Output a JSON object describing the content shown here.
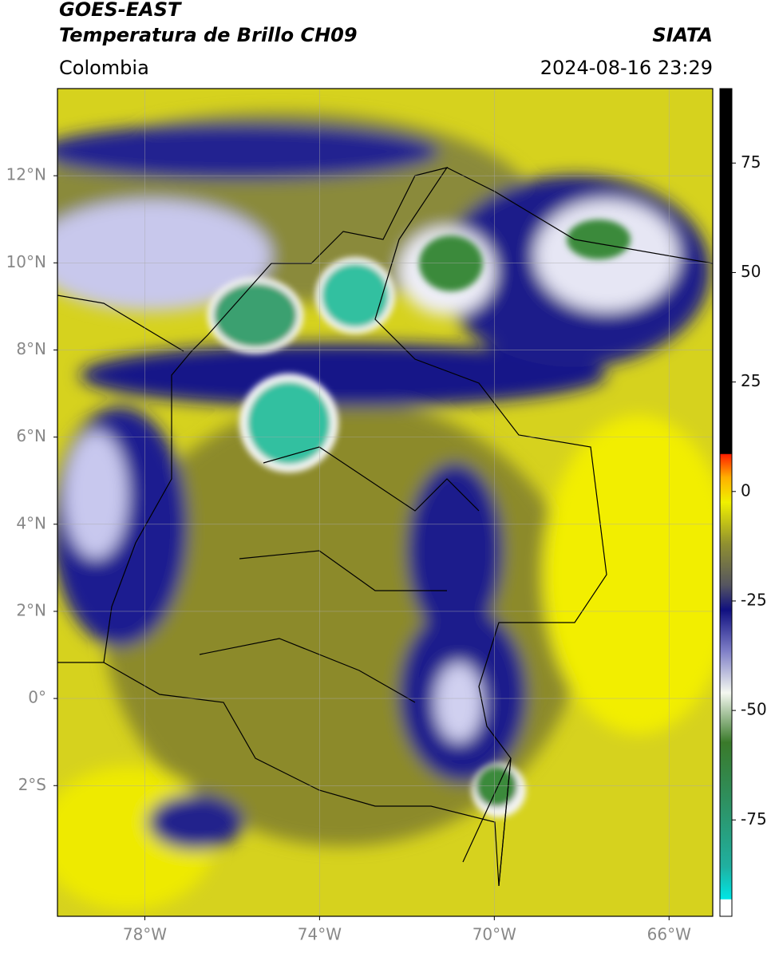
{
  "header": {
    "title": "GOES-EAST",
    "subtitle": "Temperatura de Brillo CH09",
    "source": "SIATA",
    "region": "Colombia",
    "datetime": "2024-08-16 23:29"
  },
  "map": {
    "lon_range": [
      -80,
      -65
    ],
    "lat_range": [
      -5,
      14
    ],
    "lon_ticks": [
      {
        "value": -78,
        "label": "78°W"
      },
      {
        "value": -74,
        "label": "74°W"
      },
      {
        "value": -70,
        "label": "70°W"
      },
      {
        "value": -66,
        "label": "66°W"
      }
    ],
    "lat_ticks": [
      {
        "value": 12,
        "label": "12°N"
      },
      {
        "value": 10,
        "label": "10°N"
      },
      {
        "value": 8,
        "label": "8°N"
      },
      {
        "value": 6,
        "label": "6°N"
      },
      {
        "value": 4,
        "label": "4°N"
      },
      {
        "value": 2,
        "label": "2°N"
      },
      {
        "value": 0,
        "label": "0°"
      },
      {
        "value": -2,
        "label": "2°S"
      }
    ]
  },
  "colorbar": {
    "range": [
      -97,
      92
    ],
    "ticks": [
      75,
      50,
      25,
      0,
      -25,
      -50,
      -75
    ]
  }
}
